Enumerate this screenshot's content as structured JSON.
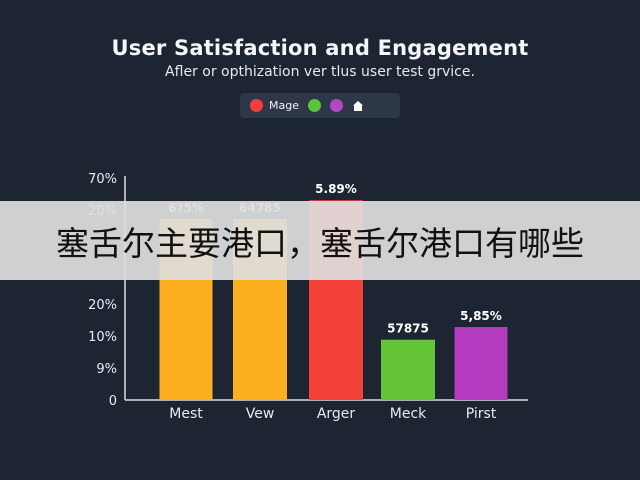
{
  "chart_data": {
    "type": "bar",
    "title": "User Satisfaction and Engagement",
    "subtitle": "Afler or opthization ver tlus user test grvice.",
    "categories": [
      "Mest",
      "Vew",
      "Arger",
      "Meck",
      "Pirst"
    ],
    "values": [
      57,
      57,
      63,
      19,
      23
    ],
    "data_labels": [
      "6?5%",
      "64785",
      "5.89%",
      "57875",
      "5,85%"
    ],
    "bar_colors": [
      "#fdb01f",
      "#fdb01f",
      "#f4413a",
      "#63c437",
      "#b43bc0"
    ],
    "y_tick_labels": [
      "0",
      "9%",
      "10%",
      "20%",
      "",
      "20%",
      "70%"
    ],
    "ylim": [
      0,
      70
    ],
    "grid": false,
    "legend": {
      "placement": "top-center",
      "items": [
        {
          "color": "#f23e36",
          "label": "Mage"
        },
        {
          "color": "#59c43c",
          "label": ""
        },
        {
          "color": "#b447c2",
          "label": ""
        },
        {
          "icon": "home-icon",
          "label": ""
        }
      ]
    }
  },
  "overlay": {
    "text": "塞舌尔主要港口，塞舌尔港口有哪些"
  }
}
